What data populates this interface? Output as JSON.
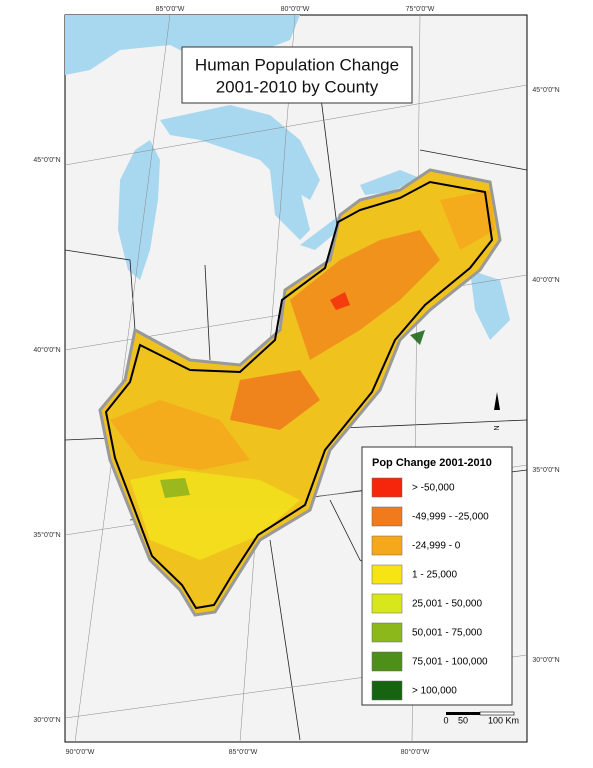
{
  "title": {
    "lines": [
      "Human Population Change",
      "2001-2010 by County"
    ]
  },
  "graticule": {
    "top": [
      "85°0'0\"W",
      "80°0'0\"W",
      "75°0'0\"W"
    ],
    "bottom": [
      "90°0'0\"W",
      "85°0'0\"W",
      "80°0'0\"W"
    ],
    "left": [
      "45°0'0\"N",
      "40°0'0\"N",
      "35°0'0\"N",
      "30°0'0\"N"
    ],
    "right": [
      "45°0'0\"N",
      "40°0'0\"N",
      "35°0'0\"N",
      "30°0'0\"N"
    ]
  },
  "legend": {
    "title": "Pop Change 2001-2010",
    "items": [
      {
        "label": "> -50,000",
        "color": "#f5260c"
      },
      {
        "label": "-49,999 - -25,000",
        "color": "#f07a1c"
      },
      {
        "label": "-24,999 - 0",
        "color": "#f5a81c"
      },
      {
        "label": "1 - 25,000",
        "color": "#f7e414"
      },
      {
        "label": "25,001 - 50,000",
        "color": "#d8e61c"
      },
      {
        "label": "50,001 - 75,000",
        "color": "#8db81c"
      },
      {
        "label": "75,001 - 100,000",
        "color": "#4e8f1a"
      },
      {
        "label": "> 100,000",
        "color": "#166310"
      }
    ]
  },
  "scale_bar": {
    "labels": [
      "0",
      "50",
      "100 Km"
    ]
  },
  "north_arrow": {
    "label": "N"
  }
}
